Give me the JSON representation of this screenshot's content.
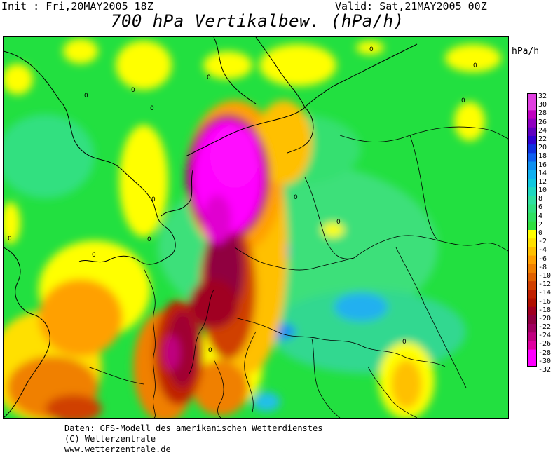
{
  "header": {
    "init": "Init : Fri,20MAY2005 18Z",
    "valid": "Valid: Sat,21MAY2005 00Z",
    "title": "700 hPa Vertikalbew. (hPa/h)"
  },
  "legend": {
    "unit": "hPa/h",
    "levels": [
      "32",
      "30",
      "28",
      "26",
      "24",
      "22",
      "20",
      "18",
      "16",
      "14",
      "12",
      "10",
      "8",
      "6",
      "4",
      "2",
      "0",
      "-2",
      "-4",
      "-6",
      "-8",
      "-10",
      "-12",
      "-14",
      "-16",
      "-18",
      "-20",
      "-22",
      "-24",
      "-26",
      "-28",
      "-30",
      "-32"
    ],
    "colors": [
      "#e040e0",
      "#e040e0",
      "#c000c0",
      "#9000c0",
      "#6000c0",
      "#3000d0",
      "#1030e0",
      "#1060f0",
      "#1090f0",
      "#10b0f0",
      "#10c8e0",
      "#20d8c0",
      "#30e0a0",
      "#30e080",
      "#30e060",
      "#30e040",
      "#ffff00",
      "#ffe000",
      "#ffc000",
      "#ffa000",
      "#f08000",
      "#e06000",
      "#d04000",
      "#c02000",
      "#b01000",
      "#a00020",
      "#900040",
      "#a00060",
      "#c00080",
      "#e000a0",
      "#ff00ff",
      "#ff00ff"
    ]
  },
  "map": {
    "contour_label": "0"
  },
  "footer": {
    "line1": "Daten: GFS-Modell des amerikanischen Wetterdienstes",
    "line2": "(C) Wetterzentrale",
    "line3": "www.wetterzentrale.de"
  }
}
